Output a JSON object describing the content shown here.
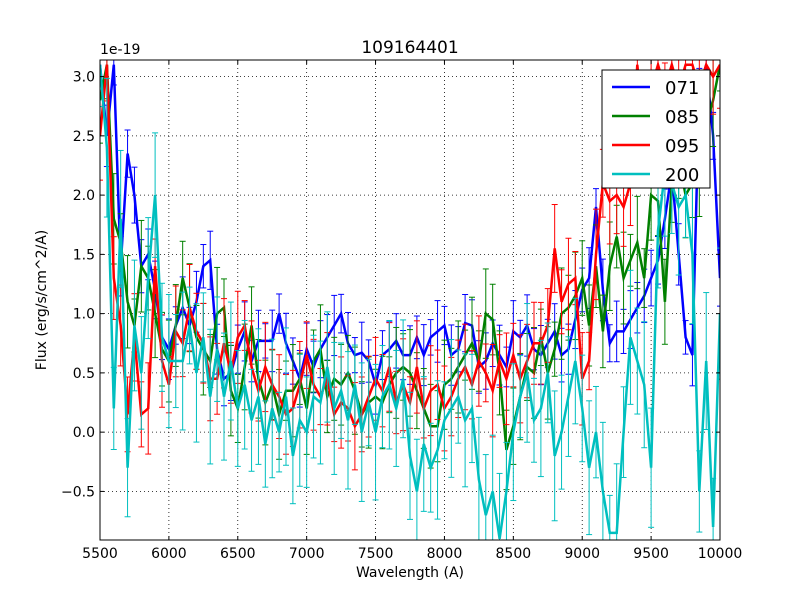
{
  "chart_data": {
    "type": "line",
    "title": "109164401",
    "xlabel": "Wavelength (A)",
    "ylabel": "Flux (erg/s/cm^2/A)",
    "y_offset_label": "1e-19",
    "xlim": [
      5500,
      10000
    ],
    "ylim": [
      -0.91,
      3.14
    ],
    "xticks": [
      5500,
      6000,
      6500,
      7000,
      7500,
      8000,
      8500,
      9000,
      9500,
      10000
    ],
    "yticks": [
      -0.5,
      0.0,
      0.5,
      1.0,
      1.5,
      2.0,
      2.5,
      3.0
    ],
    "ytick_labels": [
      "−0.5",
      "0.0",
      "0.5",
      "1.0",
      "1.5",
      "2.0",
      "2.5",
      "3.0"
    ],
    "grid": true,
    "legend_position": "top-right",
    "x_start": 5500,
    "x_step": 50,
    "series": [
      {
        "name": "071",
        "color": "#0000ff",
        "error": 0.2,
        "values": [
          3.1,
          2.5,
          3.1,
          1.4,
          2.35,
          2.0,
          1.4,
          1.5,
          1.2,
          0.8,
          0.7,
          0.9,
          1.05,
          0.9,
          1.1,
          1.4,
          1.45,
          0.7,
          0.45,
          0.5,
          0.7,
          0.85,
          0.6,
          0.77,
          0.77,
          0.77,
          1.0,
          0.75,
          0.6,
          0.45,
          0.7,
          0.55,
          0.7,
          0.8,
          0.9,
          1.0,
          0.75,
          0.65,
          0.67,
          0.6,
          0.4,
          0.65,
          0.7,
          0.77,
          0.65,
          0.65,
          0.8,
          0.65,
          0.8,
          0.85,
          0.9,
          0.65,
          0.7,
          0.92,
          0.9,
          0.55,
          0.6,
          0.75,
          0.65,
          0.55,
          0.85,
          0.8,
          0.9,
          0.7,
          0.65,
          0.75,
          0.85,
          0.65,
          0.7,
          0.95,
          1.2,
          1.3,
          1.9,
          1.2,
          0.75,
          0.85,
          0.85,
          0.95,
          1.05,
          1.15,
          1.3,
          1.45,
          1.8,
          2.2,
          1.5,
          0.8,
          0.65,
          2.9,
          3.1,
          2.5,
          1.3
        ]
      },
      {
        "name": "085",
        "color": "#008000",
        "error": 0.3,
        "values": [
          2.8,
          3.1,
          1.8,
          1.6,
          1.1,
          0.9,
          1.4,
          1.3,
          1.0,
          0.7,
          0.6,
          0.9,
          1.3,
          1.05,
          0.8,
          0.7,
          0.6,
          1.0,
          1.05,
          0.35,
          0.2,
          0.55,
          0.9,
          0.45,
          0.25,
          0.4,
          0.15,
          0.35,
          0.35,
          0.45,
          0.2,
          0.6,
          0.7,
          0.3,
          0.45,
          0.4,
          0.5,
          0.35,
          0.15,
          0.25,
          0.3,
          0.25,
          0.4,
          0.5,
          0.55,
          0.5,
          0.35,
          0.2,
          0.05,
          0.05,
          0.4,
          0.45,
          0.55,
          0.65,
          0.75,
          0.6,
          1.0,
          0.95,
          0.5,
          -0.15,
          0.05,
          0.3,
          0.55,
          0.5,
          0.8,
          0.5,
          0.7,
          1.0,
          1.05,
          1.15,
          1.3,
          0.9,
          1.4,
          0.85,
          1.4,
          1.65,
          1.3,
          1.45,
          1.6,
          1.3,
          2.0,
          1.95,
          1.1,
          2.1,
          2.3,
          2.0,
          2.1,
          2.2,
          2.6,
          2.8,
          3.1
        ]
      },
      {
        "name": "095",
        "color": "#ff0000",
        "error": 0.3,
        "values": [
          2.5,
          3.1,
          1.3,
          0.9,
          0.15,
          0.8,
          0.15,
          0.2,
          1.4,
          0.6,
          0.4,
          0.85,
          0.75,
          1.05,
          0.85,
          0.75,
          0.45,
          0.45,
          0.75,
          0.5,
          0.8,
          0.9,
          0.55,
          0.35,
          0.55,
          0.4,
          0.3,
          0.15,
          0.2,
          0.4,
          0.65,
          0.4,
          0.3,
          0.45,
          0.15,
          0.25,
          0.2,
          0.05,
          0.15,
          0.3,
          0.45,
          0.35,
          0.55,
          0.25,
          0.4,
          0.25,
          0.55,
          0.2,
          0.35,
          0.4,
          0.2,
          0.3,
          0.45,
          0.55,
          0.4,
          0.6,
          0.5,
          0.35,
          0.6,
          0.45,
          0.65,
          0.45,
          0.6,
          0.75,
          0.75,
          0.9,
          1.55,
          1.1,
          1.25,
          1.3,
          0.45,
          0.6,
          1.5,
          2.1,
          1.95,
          2.0,
          1.9,
          2.1,
          3.1,
          2.5,
          2.9,
          3.1,
          2.9,
          3.1,
          2.9,
          3.1,
          3.1,
          2.9,
          3.1,
          3.0,
          3.1
        ]
      },
      {
        "name": "200",
        "color": "#00bfbf",
        "error": 0.45,
        "values": [
          3.1,
          2.4,
          0.2,
          1.8,
          -0.3,
          0.9,
          0.5,
          1.3,
          2.0,
          0.8,
          0.6,
          0.6,
          0.6,
          0.9,
          0.5,
          0.8,
          0.3,
          0.7,
          0.3,
          0.6,
          0.2,
          0.4,
          0.1,
          0.3,
          -0.1,
          0.2,
          0.0,
          0.3,
          -0.2,
          0.1,
          0.0,
          0.3,
          0.25,
          0.55,
          0.2,
          0.35,
          0.1,
          0.4,
          0.0,
          0.25,
          0.0,
          0.3,
          0.4,
          0.2,
          0.45,
          -0.2,
          -0.5,
          -0.1,
          -0.3,
          -0.15,
          0.1,
          0.2,
          0.3,
          0.1,
          0.2,
          -0.4,
          -0.7,
          -0.5,
          -0.9,
          -0.5,
          0.0,
          0.3,
          0.5,
          0.1,
          0.2,
          0.5,
          -0.2,
          0.0,
          0.3,
          0.6,
          0.2,
          -0.3,
          0.0,
          -0.5,
          -0.85,
          -0.85,
          0.0,
          0.8,
          0.6,
          0.4,
          -0.3,
          1.7,
          2.2,
          2.1,
          1.9,
          2.0,
          1.5,
          -0.5,
          0.6,
          -0.8,
          1.0
        ]
      }
    ]
  }
}
